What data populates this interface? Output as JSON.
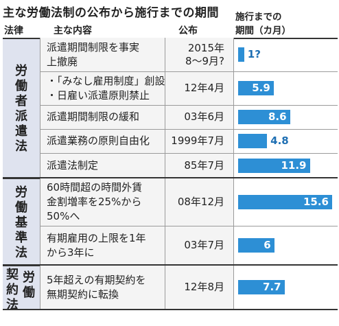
{
  "title": "主な労働法制の公布から施行までの期間",
  "headers": {
    "law": "法律",
    "content": "主な内容",
    "date": "公布",
    "period_line1": "施行までの",
    "period_line2": "期間（カ月）"
  },
  "groups": [
    {
      "name_col1": "労働者派遣法",
      "name_col2": ""
    },
    {
      "name_col1": "労働基準法",
      "name_col2": ""
    },
    {
      "name_col1": "契約法",
      "name_col2": "労働"
    }
  ],
  "rows": [
    {
      "content": [
        "派遣期間制限を事実",
        "上撤廃"
      ],
      "date": [
        "2015年",
        "8～9月?"
      ],
      "value_label": "1?"
    },
    {
      "content": [
        "・「みなし雇用制度」創設",
        "・日雇い派遣原則禁止"
      ],
      "date": [
        "12年4月"
      ],
      "value_label": "5.9"
    },
    {
      "content": [
        "派遣期間制限の緩和"
      ],
      "date": [
        "03年6月"
      ],
      "value_label": "8.6"
    },
    {
      "content": [
        "派遣業務の原則自由化"
      ],
      "date": [
        "1999年7月"
      ],
      "value_label": "4.8"
    },
    {
      "content": [
        "派遣法制定"
      ],
      "date": [
        "85年7月"
      ],
      "value_label": "11.9"
    },
    {
      "content": [
        "60時間超の時間外賃",
        "金割増率を25%から",
        "50%へ"
      ],
      "date": [
        "08年12月"
      ],
      "value_label": "15.6"
    },
    {
      "content": [
        "有期雇用の上限を1年",
        "から3年に"
      ],
      "date": [
        "03年7月"
      ],
      "value_label": "6"
    },
    {
      "content": [
        "5年超えの有期契約を",
        "無期契約に転換"
      ],
      "date": [
        "12年8月"
      ],
      "value_label": "7.7"
    }
  ],
  "chart_data": {
    "type": "bar",
    "orientation": "horizontal",
    "title": "主な労働法制の公布から施行までの期間",
    "xlabel": "施行までの期間（カ月）",
    "categories": [
      "派遣期間制限を事実上撤廃",
      "「みなし雇用制度」創設・日雇い派遣原則禁止",
      "派遣期間制限の緩和",
      "派遣業務の原則自由化",
      "派遣法制定",
      "60時間超の時間外賃金割増率を25%から50%へ",
      "有期雇用の上限を1年から3年に",
      "5年超えの有期契約を無期契約に転換"
    ],
    "values": [
      1,
      5.9,
      8.6,
      4.8,
      11.9,
      15.6,
      6,
      7.7
    ],
    "xlim": [
      0,
      15.6
    ],
    "bar_color": "#2d8fd5",
    "group_bg_color": "#dfe3ef"
  }
}
